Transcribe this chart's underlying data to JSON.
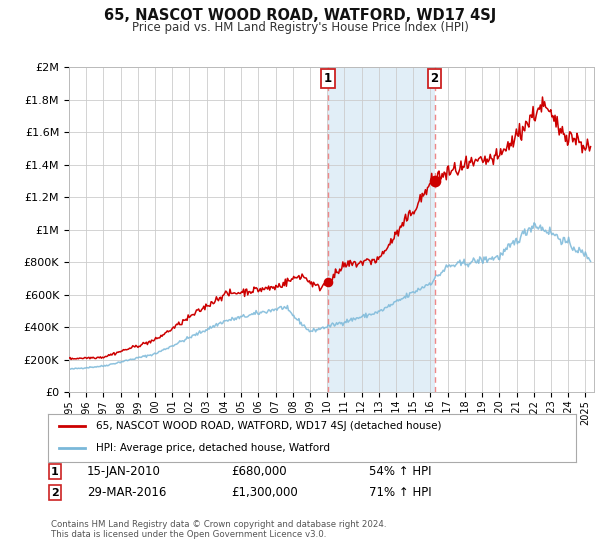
{
  "title": "65, NASCOT WOOD ROAD, WATFORD, WD17 4SJ",
  "subtitle": "Price paid vs. HM Land Registry's House Price Index (HPI)",
  "background_color": "#ffffff",
  "plot_bg_color": "#ffffff",
  "grid_color": "#cccccc",
  "hpi_line_color": "#7ab8d9",
  "price_line_color": "#cc0000",
  "vline_color": "#ee8888",
  "shade_color": "#daeaf5",
  "ylim": [
    0,
    2000000
  ],
  "yticks": [
    0,
    200000,
    400000,
    600000,
    800000,
    1000000,
    1200000,
    1400000,
    1600000,
    1800000,
    2000000
  ],
  "ytick_labels": [
    "£0",
    "£200K",
    "£400K",
    "£600K",
    "£800K",
    "£1M",
    "£1.2M",
    "£1.4M",
    "£1.6M",
    "£1.8M",
    "£2M"
  ],
  "xmin": 1995.0,
  "xmax": 2025.5,
  "transaction1_x": 2010.04,
  "transaction1_y": 680000,
  "transaction2_x": 2016.24,
  "transaction2_y": 1300000,
  "transaction1_label": "15-JAN-2010",
  "transaction1_price": "£680,000",
  "transaction1_hpi": "54% ↑ HPI",
  "transaction2_label": "29-MAR-2016",
  "transaction2_price": "£1,300,000",
  "transaction2_hpi": "71% ↑ HPI",
  "legend_line1": "65, NASCOT WOOD ROAD, WATFORD, WD17 4SJ (detached house)",
  "legend_line2": "HPI: Average price, detached house, Watford",
  "footnote": "Contains HM Land Registry data © Crown copyright and database right 2024.\nThis data is licensed under the Open Government Licence v3.0."
}
